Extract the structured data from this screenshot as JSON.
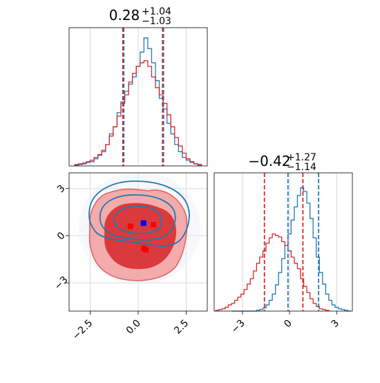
{
  "colors": {
    "blue": "#1f77b4",
    "red": "#d62728",
    "fill_red": "#d62728",
    "grid": "#d9d9d9",
    "point_blue": "#0000ff",
    "point_red": "#ff0000"
  },
  "chart_data": [
    {
      "type": "histogram",
      "panel": "top-left",
      "title": {
        "value": "0.28",
        "plus": "+1.04",
        "minus": "−1.03"
      },
      "xlim": [
        -3.6,
        3.6
      ],
      "grid": true,
      "series": [
        {
          "color": "blue",
          "bins_x": [
            -3.2,
            -3.0,
            -2.8,
            -2.6,
            -2.4,
            -2.2,
            -2.0,
            -1.8,
            -1.6,
            -1.4,
            -1.2,
            -1.0,
            -0.8,
            -0.6,
            -0.4,
            -0.2,
            0.0,
            0.2,
            0.4,
            0.6,
            0.8,
            1.0,
            1.2,
            1.4,
            1.6,
            1.8,
            2.0,
            2.2,
            2.4,
            2.6,
            2.8,
            3.0,
            3.2
          ],
          "counts": [
            1,
            2,
            3,
            5,
            6,
            10,
            15,
            20,
            30,
            45,
            55,
            75,
            90,
            105,
            115,
            125,
            140,
            160,
            180,
            165,
            145,
            120,
            95,
            80,
            60,
            45,
            30,
            20,
            12,
            8,
            5,
            3,
            1
          ]
        },
        {
          "color": "red",
          "bins_x": [
            -3.2,
            -3.0,
            -2.8,
            -2.6,
            -2.4,
            -2.2,
            -2.0,
            -1.8,
            -1.6,
            -1.4,
            -1.2,
            -1.0,
            -0.8,
            -0.6,
            -0.4,
            -0.2,
            0.0,
            0.2,
            0.4,
            0.6,
            0.8,
            1.0,
            1.2,
            1.4,
            1.6,
            1.8,
            2.0,
            2.2,
            2.4,
            2.6,
            2.8,
            3.0,
            3.2
          ],
          "counts": [
            2,
            3,
            4,
            6,
            8,
            12,
            16,
            22,
            30,
            42,
            55,
            70,
            88,
            100,
            118,
            130,
            140,
            145,
            148,
            140,
            125,
            110,
            100,
            88,
            72,
            55,
            40,
            28,
            18,
            10,
            6,
            3,
            2
          ]
        }
      ],
      "quantile_lines": [
        {
          "color": "blue",
          "x": [
            -0.75,
            1.32
          ]
        },
        {
          "color": "red",
          "x": [
            -0.8,
            1.27
          ]
        }
      ]
    },
    {
      "type": "scatter",
      "panel": "bottom-left",
      "x_tick_labels": [
        "−2.5",
        "0.0",
        "2.5"
      ],
      "y_tick_labels": [
        "3",
        "0",
        "−3"
      ],
      "xlim": [
        -3.6,
        3.6
      ],
      "ylim": [
        -4.8,
        4.0
      ],
      "grid": true,
      "markers": [
        {
          "color": "point_blue",
          "x": 0.28,
          "y": 0.8
        },
        {
          "color": "point_red",
          "x": -0.4,
          "y": 0.6
        },
        {
          "color": "point_red",
          "x": 0.8,
          "y": 0.7
        },
        {
          "color": "point_red",
          "x": 0.3,
          "y": -0.8
        },
        {
          "color": "point_red",
          "x": 0.4,
          "y": -0.9
        }
      ]
    },
    {
      "type": "histogram",
      "panel": "bottom-right",
      "title": {
        "value": "−0.42",
        "plus": "+1.27",
        "minus": "−1.14"
      },
      "x_tick_labels": [
        "−3",
        "0",
        "3"
      ],
      "xlim": [
        -4.8,
        4.0
      ],
      "grid": true,
      "series": [
        {
          "color": "blue",
          "bins_x": [
            -3.6,
            -3.4,
            -3.2,
            -3.0,
            -2.8,
            -2.6,
            -2.4,
            -2.2,
            -2.0,
            -1.8,
            -1.6,
            -1.4,
            -1.2,
            -1.0,
            -0.8,
            -0.6,
            -0.4,
            -0.2,
            0.0,
            0.2,
            0.4,
            0.6,
            0.8,
            1.0,
            1.2,
            1.4,
            1.6,
            1.8,
            2.0,
            2.2,
            2.4,
            2.6,
            2.8,
            3.0,
            3.2,
            3.4,
            3.6,
            3.8
          ],
          "counts": [
            0,
            0,
            0,
            0,
            0,
            0,
            0,
            0,
            1,
            2,
            4,
            8,
            14,
            22,
            34,
            50,
            68,
            85,
            100,
            118,
            135,
            150,
            160,
            155,
            140,
            120,
            95,
            70,
            50,
            35,
            22,
            14,
            8,
            5,
            3,
            2,
            1,
            0
          ]
        },
        {
          "color": "red",
          "bins_x": [
            -4.6,
            -4.4,
            -4.2,
            -4.0,
            -3.8,
            -3.6,
            -3.4,
            -3.2,
            -3.0,
            -2.8,
            -2.6,
            -2.4,
            -2.2,
            -2.0,
            -1.8,
            -1.6,
            -1.4,
            -1.2,
            -1.0,
            -0.8,
            -0.6,
            -0.4,
            -0.2,
            0.0,
            0.2,
            0.4,
            0.6,
            0.8,
            1.0,
            1.2,
            1.4,
            1.6,
            1.8,
            2.0,
            2.2,
            2.4
          ],
          "counts": [
            1,
            2,
            3,
            5,
            8,
            10,
            14,
            18,
            22,
            28,
            35,
            42,
            52,
            62,
            70,
            78,
            88,
            95,
            100,
            98,
            96,
            90,
            85,
            78,
            70,
            62,
            55,
            42,
            32,
            24,
            16,
            10,
            6,
            3,
            2,
            1
          ]
        }
      ],
      "quantile_lines": [
        {
          "color": "blue",
          "x": [
            -0.1,
            1.85
          ]
        },
        {
          "color": "red",
          "x": [
            -1.6,
            0.85
          ]
        }
      ]
    }
  ]
}
